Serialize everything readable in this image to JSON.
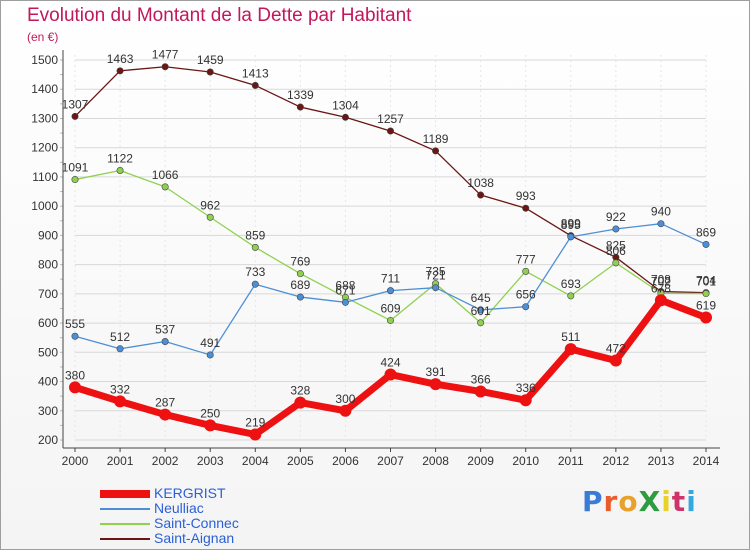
{
  "title": "Evolution du Montant de la Dette par Habitant",
  "unit_label": "(en €)",
  "logo_text": "ProXiti",
  "colors": {
    "title": "#c2185b",
    "legend_text": "#2a5fd8",
    "grid": "#d8d8d8",
    "axis": "#444444"
  },
  "chart_data": {
    "type": "line",
    "title": "Evolution du Montant de la Dette par Habitant",
    "ylabel": "(en €)",
    "xlabel": "",
    "x": [
      "2000",
      "2001",
      "2002",
      "2003",
      "2004",
      "2005",
      "2006",
      "2007",
      "2008",
      "2009",
      "2010",
      "2011",
      "2012",
      "2013",
      "2014"
    ],
    "ylim": [
      200,
      1500
    ],
    "yticks": [
      200,
      300,
      400,
      500,
      600,
      700,
      800,
      900,
      1000,
      1100,
      1200,
      1300,
      1400,
      1500
    ],
    "grid": true,
    "legend_position": "bottom-left",
    "series": [
      {
        "name": "KERGRIST",
        "color": "#ee1111",
        "values": [
          380,
          332,
          287,
          250,
          219,
          328,
          300,
          424,
          391,
          366,
          336,
          511,
          472,
          678,
          619
        ]
      },
      {
        "name": "Neulliac",
        "color": "#4d8fd6",
        "values": [
          555,
          512,
          537,
          491,
          733,
          689,
          671,
          711,
          721,
          645,
          656,
          895,
          922,
          940,
          869
        ]
      },
      {
        "name": "Saint-Connec",
        "color": "#8fd14f",
        "values": [
          1091,
          1122,
          1066,
          962,
          859,
          769,
          688,
          609,
          735,
          601,
          777,
          693,
          806,
          702,
          701
        ]
      },
      {
        "name": "Saint-Aignan",
        "color": "#6b1515",
        "values": [
          1307,
          1463,
          1477,
          1459,
          1413,
          1339,
          1304,
          1257,
          1189,
          1038,
          993,
          899,
          825,
          708,
          704
        ]
      }
    ]
  }
}
